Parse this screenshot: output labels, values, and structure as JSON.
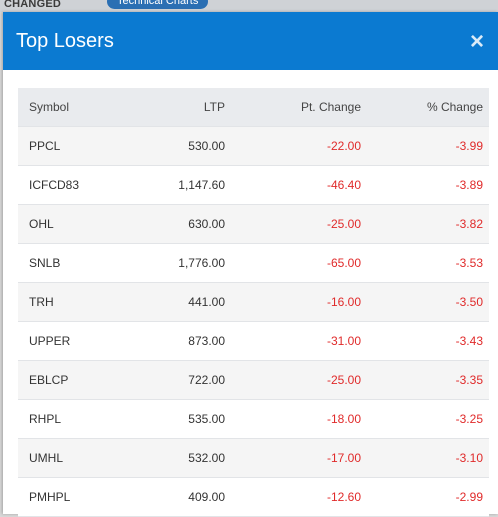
{
  "background": {
    "heading_fragment": "CHANGED",
    "tab_pill": "Technical Charts"
  },
  "modal": {
    "title": "Top Losers",
    "close_glyph": "×"
  },
  "table": {
    "columns": [
      "Symbol",
      "LTP",
      "Pt. Change",
      "% Change"
    ],
    "rows": [
      {
        "symbol": "PPCL",
        "ltp": "530.00",
        "pt_change": "-22.00",
        "pct_change": "-3.99"
      },
      {
        "symbol": "ICFCD83",
        "ltp": "1,147.60",
        "pt_change": "-46.40",
        "pct_change": "-3.89"
      },
      {
        "symbol": "OHL",
        "ltp": "630.00",
        "pt_change": "-25.00",
        "pct_change": "-3.82"
      },
      {
        "symbol": "SNLB",
        "ltp": "1,776.00",
        "pt_change": "-65.00",
        "pct_change": "-3.53"
      },
      {
        "symbol": "TRH",
        "ltp": "441.00",
        "pt_change": "-16.00",
        "pct_change": "-3.50"
      },
      {
        "symbol": "UPPER",
        "ltp": "873.00",
        "pt_change": "-31.00",
        "pct_change": "-3.43"
      },
      {
        "symbol": "EBLCP",
        "ltp": "722.00",
        "pt_change": "-25.00",
        "pct_change": "-3.35"
      },
      {
        "symbol": "RHPL",
        "ltp": "535.00",
        "pt_change": "-18.00",
        "pct_change": "-3.25"
      },
      {
        "symbol": "UMHL",
        "ltp": "532.00",
        "pt_change": "-17.00",
        "pct_change": "-3.10"
      },
      {
        "symbol": "PMHPL",
        "ltp": "409.00",
        "pt_change": "-12.60",
        "pct_change": "-2.99"
      }
    ]
  },
  "colors": {
    "header_blue": "#0b7ad1",
    "negative_red": "#e02a2a"
  }
}
